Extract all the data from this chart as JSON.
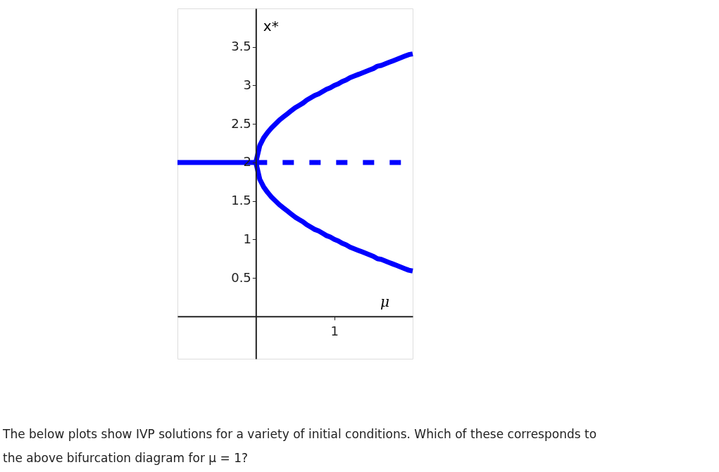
{
  "chart_data": {
    "type": "line",
    "xlabel": "μ",
    "ylabel": "x*",
    "categories": [
      null,
      null,
      null,
      null,
      null,
      null,
      null,
      null,
      null,
      null,
      null,
      null,
      null,
      null,
      null,
      null,
      null,
      null,
      null,
      null,
      null,
      null,
      null,
      null,
      null,
      null,
      null,
      null,
      null,
      null,
      null,
      null,
      null,
      null,
      null,
      null,
      null,
      null,
      null,
      null,
      "1",
      null,
      null,
      null,
      null,
      null,
      null,
      null,
      null,
      null,
      null,
      null,
      null,
      null,
      null,
      null,
      null,
      null,
      null,
      null,
      null
    ],
    "ylim": [
      -0.55,
      4.0
    ],
    "yticks": [
      0.5,
      1,
      1.5,
      2,
      2.5,
      3,
      3.5
    ],
    "grid": false,
    "legend": false,
    "marker": "none",
    "series": [
      {
        "color": "#0000ff",
        "line_style": "solid",
        "values": [
          2,
          2,
          2,
          2,
          2,
          2,
          2,
          2,
          2,
          2,
          2,
          2,
          2,
          2,
          2,
          2,
          2,
          2,
          2,
          2,
          2,
          null,
          null,
          null,
          null,
          null,
          null,
          null,
          null,
          null,
          null,
          null,
          null,
          null,
          null,
          null,
          null,
          null,
          null,
          null,
          null,
          null,
          null,
          null,
          null,
          null,
          null,
          null,
          null,
          null,
          null,
          null,
          null,
          null,
          null,
          null,
          null,
          null,
          null,
          null,
          null
        ]
      },
      {
        "color": "#0000ff",
        "line_style": "dashed",
        "values": [
          null,
          null,
          null,
          null,
          null,
          null,
          null,
          null,
          null,
          null,
          null,
          null,
          null,
          null,
          null,
          null,
          null,
          null,
          null,
          null,
          2,
          2,
          2,
          2,
          2,
          2,
          2,
          2,
          2,
          2,
          2,
          2,
          2,
          2,
          2,
          2,
          2,
          2,
          2,
          2,
          2,
          2,
          2,
          2,
          2,
          2,
          2,
          2,
          2,
          2,
          2,
          2,
          2,
          2,
          2,
          2,
          2,
          2,
          null,
          null,
          null
        ]
      },
      {
        "color": "#0000ff",
        "line_style": "solid",
        "values": [
          null,
          null,
          null,
          null,
          null,
          null,
          null,
          null,
          null,
          null,
          null,
          null,
          null,
          null,
          null,
          null,
          null,
          null,
          null,
          null,
          2,
          2.22,
          2.32,
          2.39,
          2.45,
          2.5,
          2.55,
          2.59,
          2.63,
          2.67,
          2.71,
          2.74,
          2.77,
          2.81,
          2.84,
          2.87,
          2.89,
          2.92,
          2.95,
          2.97,
          3,
          3.02,
          3.05,
          3.07,
          3.1,
          3.12,
          3.14,
          3.16,
          3.18,
          3.2,
          3.22,
          3.25,
          3.26,
          3.28,
          3.3,
          3.32,
          3.34,
          3.36,
          3.38,
          3.4,
          3.41
        ]
      },
      {
        "color": "#0000ff",
        "line_style": "solid",
        "values": [
          null,
          null,
          null,
          null,
          null,
          null,
          null,
          null,
          null,
          null,
          null,
          null,
          null,
          null,
          null,
          null,
          null,
          null,
          null,
          null,
          2,
          1.78,
          1.68,
          1.61,
          1.55,
          1.5,
          1.45,
          1.41,
          1.37,
          1.33,
          1.29,
          1.26,
          1.23,
          1.19,
          1.16,
          1.13,
          1.11,
          1.08,
          1.05,
          1.03,
          1,
          0.98,
          0.95,
          0.93,
          0.9,
          0.88,
          0.86,
          0.84,
          0.82,
          0.8,
          0.78,
          0.75,
          0.74,
          0.72,
          0.7,
          0.68,
          0.66,
          0.64,
          0.62,
          0.6,
          0.59
        ]
      }
    ],
    "annotations": [
      "The below plots show IVP solutions for a variety of initial conditions. Which of these corresponds to\nthe above bifurcation diagram for μ = 1?"
    ]
  }
}
